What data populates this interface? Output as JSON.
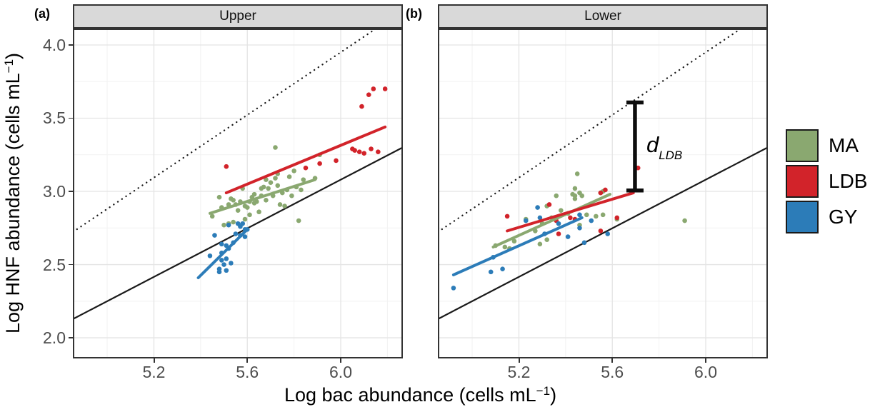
{
  "figure_type": "two-panel scatter plot with regression and reference lines",
  "panel_tags": {
    "a": "(a)",
    "b": "(b)"
  },
  "chart_data": {
    "type": "scatter",
    "xlabel": {
      "pre": "Log bac abundance (cells mL",
      "sup": "−1",
      "post": ")"
    },
    "ylabel": {
      "pre": "Log HNF abundance (cells mL",
      "sup": "−1",
      "post": ")"
    },
    "xlim": [
      4.853,
      6.266
    ],
    "ylim": [
      1.859,
      4.112
    ],
    "x_ticks": [
      "5.2",
      "5.6",
      "6.0"
    ],
    "x_tick_values": [
      5.2,
      5.6,
      6.0
    ],
    "y_ticks": [
      "2.0",
      "2.5",
      "3.0",
      "3.5",
      "4.0"
    ],
    "y_tick_values": [
      2.0,
      2.5,
      3.0,
      3.5,
      4.0
    ],
    "x_minor": [
      5.0,
      5.4,
      5.8,
      6.2
    ],
    "y_minor": [
      2.25,
      2.75,
      3.25,
      3.75
    ],
    "grid": "major+minor",
    "reference_lines": [
      {
        "name": "upper-bound",
        "style": "dotted",
        "slope": 1.07,
        "intercept": -2.47,
        "color": "#1a1a1a"
      },
      {
        "name": "lower-bound",
        "style": "solid",
        "slope": 0.83,
        "intercept": -1.9,
        "color": "#1a1a1a"
      }
    ],
    "panels": [
      {
        "label": "(a)",
        "strip": "Upper",
        "series": [
          {
            "name": "MA",
            "color": "#8aa870",
            "trend": [
              [
                5.44,
                2.85
              ],
              [
                5.89,
                3.08
              ]
            ],
            "points": [
              [
                5.45,
                2.83
              ],
              [
                5.48,
                2.96
              ],
              [
                5.49,
                2.89
              ],
              [
                5.5,
                2.77
              ],
              [
                5.52,
                2.91
              ],
              [
                5.52,
                2.78
              ],
              [
                5.53,
                2.95
              ],
              [
                5.54,
                2.94
              ],
              [
                5.54,
                2.79
              ],
              [
                5.55,
                2.91
              ],
              [
                5.56,
                2.87
              ],
              [
                5.57,
                2.93
              ],
              [
                5.58,
                3.02
              ],
              [
                5.59,
                2.9
              ],
              [
                5.59,
                2.81
              ],
              [
                5.6,
                2.89
              ],
              [
                5.61,
                2.93
              ],
              [
                5.61,
                2.84
              ],
              [
                5.62,
                2.96
              ],
              [
                5.63,
                2.92
              ],
              [
                5.63,
                2.98
              ],
              [
                5.64,
                2.93
              ],
              [
                5.65,
                2.86
              ],
              [
                5.66,
                3.02
              ],
              [
                5.66,
                2.97
              ],
              [
                5.67,
                3.03
              ],
              [
                5.68,
                2.94
              ],
              [
                5.68,
                3.08
              ],
              [
                5.69,
                3.02
              ],
              [
                5.7,
                3.06
              ],
              [
                5.71,
                2.97
              ],
              [
                5.72,
                3.09
              ],
              [
                5.72,
                3.3
              ],
              [
                5.73,
                3.04
              ],
              [
                5.73,
                3.12
              ],
              [
                5.74,
                2.91
              ],
              [
                5.75,
                2.99
              ],
              [
                5.76,
                2.9
              ],
              [
                5.77,
                3.01
              ],
              [
                5.78,
                3.1
              ],
              [
                5.79,
                2.97
              ],
              [
                5.8,
                3.14
              ],
              [
                5.81,
                3.03
              ],
              [
                5.82,
                2.8
              ],
              [
                5.83,
                3.01
              ],
              [
                5.84,
                3.08
              ],
              [
                5.89,
                3.09
              ],
              [
                5.91,
                3.25
              ]
            ]
          },
          {
            "name": "LDB",
            "color": "#d2232a",
            "trend": [
              [
                5.51,
                2.99
              ],
              [
                6.19,
                3.44
              ]
            ],
            "points": [
              [
                5.51,
                3.17
              ],
              [
                5.85,
                3.16
              ],
              [
                5.91,
                3.19
              ],
              [
                5.98,
                3.21
              ],
              [
                6.05,
                3.29
              ],
              [
                6.06,
                3.28
              ],
              [
                6.08,
                3.27
              ],
              [
                6.1,
                3.26
              ],
              [
                6.13,
                3.29
              ],
              [
                6.16,
                3.27
              ],
              [
                6.09,
                3.58
              ],
              [
                6.12,
                3.66
              ],
              [
                6.14,
                3.7
              ],
              [
                6.19,
                3.7
              ]
            ]
          },
          {
            "name": "GY",
            "color": "#2c7cb8",
            "trend": [
              [
                5.39,
                2.41
              ],
              [
                5.6,
                2.74
              ]
            ],
            "points": [
              [
                5.44,
                2.56
              ],
              [
                5.46,
                2.7
              ],
              [
                5.48,
                2.47
              ],
              [
                5.48,
                2.45
              ],
              [
                5.49,
                2.58
              ],
              [
                5.49,
                2.53
              ],
              [
                5.49,
                2.64
              ],
              [
                5.5,
                2.5
              ],
              [
                5.51,
                2.46
              ],
              [
                5.51,
                2.54
              ],
              [
                5.51,
                2.63
              ],
              [
                5.52,
                2.77
              ],
              [
                5.52,
                2.61
              ],
              [
                5.53,
                2.51
              ],
              [
                5.54,
                2.65
              ],
              [
                5.55,
                2.71
              ],
              [
                5.56,
                2.78
              ],
              [
                5.57,
                2.7
              ],
              [
                5.57,
                2.76
              ],
              [
                5.58,
                2.78
              ],
              [
                5.59,
                2.69
              ],
              [
                5.59,
                2.74
              ],
              [
                5.6,
                2.74
              ]
            ]
          }
        ]
      },
      {
        "label": "(b)",
        "strip": "Lower",
        "annotation": {
          "text": "d",
          "sub": "LDB",
          "x": 5.697,
          "y_bottom": 3.006,
          "y_top": 3.607
        },
        "series": [
          {
            "name": "MA",
            "color": "#8aa870",
            "trend": [
              [
                5.09,
                2.62
              ],
              [
                5.59,
                2.98
              ]
            ],
            "points": [
              [
                5.1,
                2.63
              ],
              [
                5.14,
                2.62
              ],
              [
                5.16,
                2.61
              ],
              [
                5.18,
                2.66
              ],
              [
                5.23,
                2.81
              ],
              [
                5.27,
                2.73
              ],
              [
                5.29,
                2.64
              ],
              [
                5.3,
                2.78
              ],
              [
                5.32,
                2.67
              ],
              [
                5.32,
                2.9
              ],
              [
                5.34,
                2.82
              ],
              [
                5.36,
                2.97
              ],
              [
                5.38,
                2.87
              ],
              [
                5.41,
                2.85
              ],
              [
                5.43,
                2.98
              ],
              [
                5.44,
                2.95
              ],
              [
                5.44,
                3.02
              ],
              [
                5.45,
                3.12
              ],
              [
                5.44,
                2.97
              ],
              [
                5.46,
                2.99
              ],
              [
                5.47,
                2.97
              ],
              [
                5.46,
                2.77
              ],
              [
                5.49,
                2.84
              ],
              [
                5.53,
                2.83
              ],
              [
                5.55,
                2.99
              ],
              [
                5.56,
                3.0
              ],
              [
                5.56,
                2.84
              ],
              [
                5.62,
                2.81
              ],
              [
                5.91,
                2.8
              ]
            ]
          },
          {
            "name": "LDB",
            "color": "#d2232a",
            "trend": [
              [
                5.15,
                2.73
              ],
              [
                5.69,
                2.99
              ]
            ],
            "points": [
              [
                5.15,
                2.83
              ],
              [
                5.33,
                2.91
              ],
              [
                5.36,
                2.8
              ],
              [
                5.37,
                2.71
              ],
              [
                5.42,
                2.82
              ],
              [
                5.44,
                2.81
              ],
              [
                5.55,
                2.73
              ],
              [
                5.55,
                2.99
              ],
              [
                5.57,
                3.01
              ],
              [
                5.62,
                2.82
              ],
              [
                5.71,
                3.16
              ]
            ]
          },
          {
            "name": "GY",
            "color": "#2c7cb8",
            "trend": [
              [
                4.92,
                2.43
              ],
              [
                5.47,
                2.82
              ]
            ],
            "points": [
              [
                4.92,
                2.34
              ],
              [
                5.08,
                2.45
              ],
              [
                5.09,
                2.55
              ],
              [
                5.13,
                2.47
              ],
              [
                5.23,
                2.8
              ],
              [
                5.28,
                2.89
              ],
              [
                5.29,
                2.82
              ],
              [
                5.31,
                2.71
              ],
              [
                5.37,
                2.78
              ],
              [
                5.41,
                2.69
              ],
              [
                5.46,
                2.75
              ],
              [
                5.46,
                2.84
              ],
              [
                5.48,
                2.65
              ],
              [
                5.51,
                2.8
              ],
              [
                5.58,
                2.71
              ]
            ]
          }
        ]
      }
    ]
  },
  "legend": {
    "items": [
      {
        "label": "MA",
        "color": "#8aa870"
      },
      {
        "label": "LDB",
        "color": "#d2232a"
      },
      {
        "label": "GY",
        "color": "#2c7cb8"
      }
    ]
  }
}
